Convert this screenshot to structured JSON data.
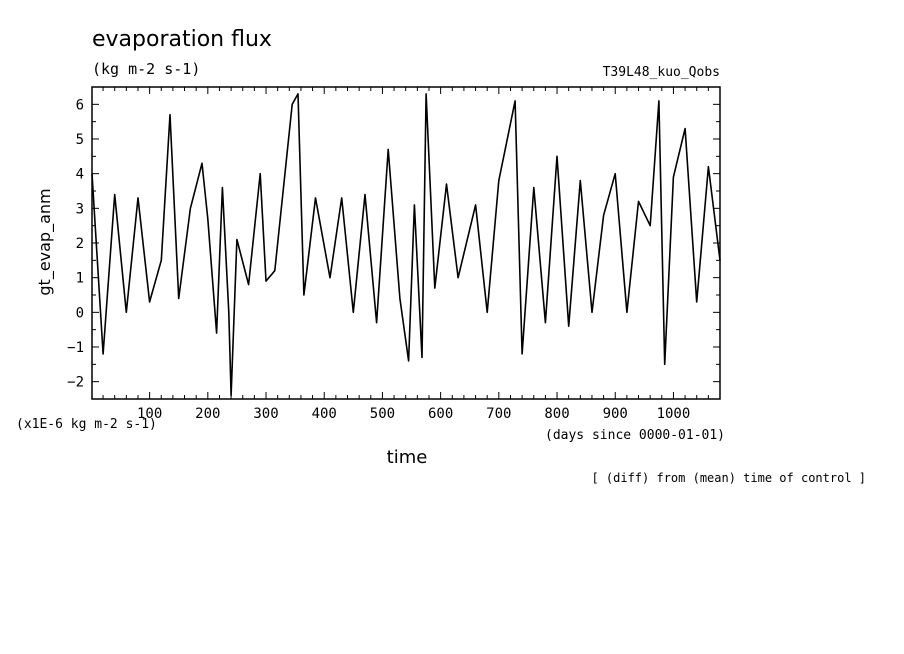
{
  "chart_data": {
    "type": "line",
    "title": "evaporation flux",
    "units": "(kg m-2 s-1)",
    "run_label": "T39L48_kuo_Qobs",
    "ylabel": "gt_evap_anm",
    "xlabel": "time",
    "x_units": "(days since 0000-01-01)",
    "y_scale_note": "(x1E-6 kg m-2 s-1)",
    "footnote": "[ (diff) from (mean) time of control ]",
    "xlim": [
      1,
      1080
    ],
    "ylim": [
      -2.5,
      6.5
    ],
    "x_ticks": [
      100,
      200,
      300,
      400,
      500,
      600,
      700,
      800,
      900,
      1000
    ],
    "y_ticks": [
      -2,
      -1,
      0,
      1,
      2,
      3,
      4,
      5,
      6
    ],
    "series": [
      {
        "color": "#000000",
        "x": [
          1,
          20,
          40,
          60,
          80,
          100,
          120,
          135,
          150,
          170,
          190,
          200,
          215,
          225,
          236,
          240,
          250,
          270,
          290,
          300,
          315,
          345,
          355,
          365,
          385,
          410,
          430,
          450,
          470,
          490,
          510,
          530,
          545,
          555,
          568,
          575,
          590,
          610,
          630,
          660,
          680,
          700,
          728,
          740,
          760,
          780,
          800,
          820,
          840,
          860,
          880,
          900,
          920,
          940,
          960,
          975,
          985,
          1000,
          1020,
          1040,
          1060,
          1080
        ],
        "y": [
          4.0,
          -1.2,
          3.4,
          0.0,
          3.3,
          0.3,
          1.5,
          5.7,
          0.4,
          3.0,
          4.3,
          2.7,
          -0.6,
          3.6,
          0.0,
          -2.4,
          2.1,
          0.8,
          4.0,
          0.9,
          1.2,
          6.0,
          6.3,
          0.5,
          3.3,
          1.0,
          3.3,
          0.0,
          3.4,
          -0.3,
          4.7,
          0.4,
          -1.4,
          3.1,
          -1.3,
          6.3,
          0.7,
          3.7,
          1.0,
          3.1,
          0.0,
          3.8,
          6.1,
          -1.2,
          3.6,
          -0.3,
          4.5,
          -0.4,
          3.8,
          0.0,
          2.8,
          4.0,
          0.0,
          3.2,
          2.5,
          6.1,
          -1.5,
          3.9,
          5.3,
          0.3,
          4.2,
          1.5
        ]
      }
    ]
  }
}
